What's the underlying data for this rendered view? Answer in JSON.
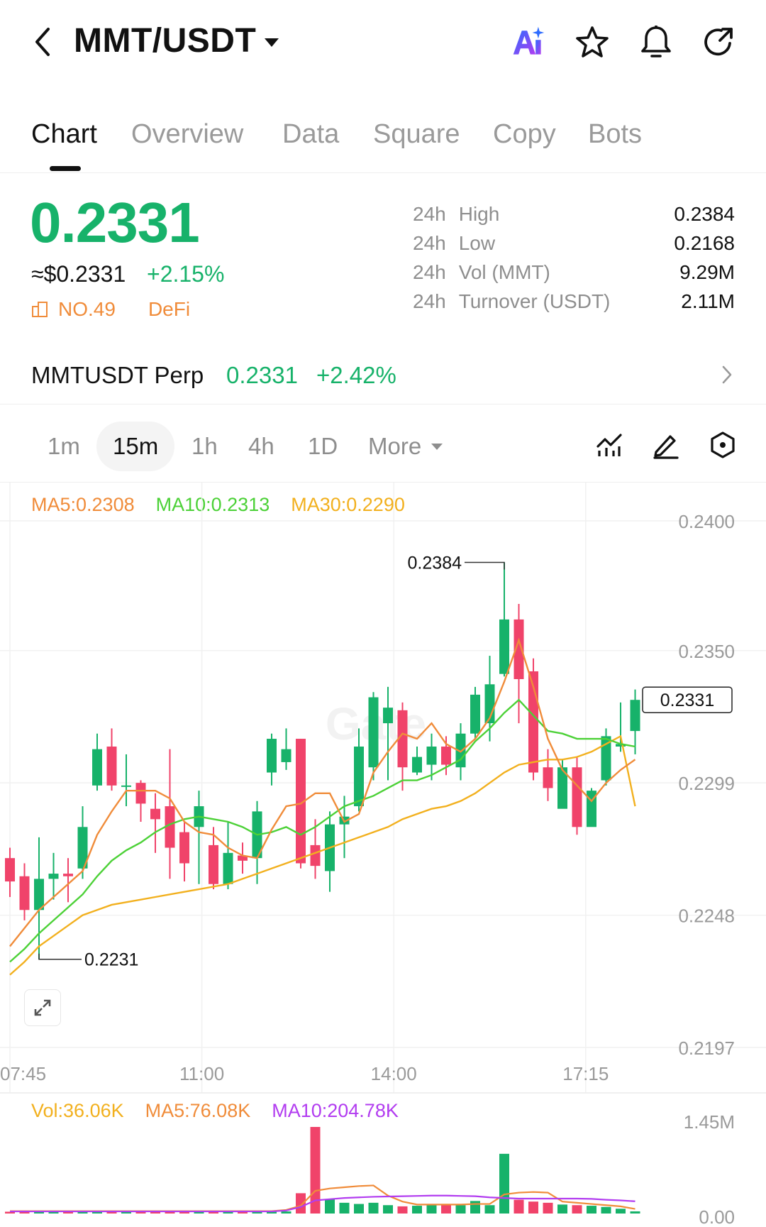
{
  "header": {
    "pair": "MMT/USDT",
    "icons": [
      "back-icon",
      "ai-icon",
      "star-icon",
      "bell-icon",
      "share-icon"
    ],
    "ai_colors": [
      "#2d6bff",
      "#b23cf0"
    ]
  },
  "tabs": [
    "Chart",
    "Overview",
    "Data",
    "Square",
    "Copy",
    "Bots"
  ],
  "price": {
    "last": "0.2331",
    "usd": "≈$0.2331",
    "change": "+2.15%",
    "rank": "NO.49",
    "tag": "DeFi",
    "colors": {
      "up": "#17b26a",
      "down": "#f0436a",
      "tag": "#f08c3a"
    }
  },
  "stats": [
    {
      "prefix": "24h",
      "label": "High",
      "value": "0.2384"
    },
    {
      "prefix": "24h",
      "label": "Low",
      "value": "0.2168"
    },
    {
      "prefix": "24h",
      "label": "Vol (MMT)",
      "value": "9.29M"
    },
    {
      "prefix": "24h",
      "label": "Turnover (USDT)",
      "value": "2.11M"
    }
  ],
  "perp": {
    "name": "MMTUSDT Perp",
    "price": "0.2331",
    "change": "+2.42%"
  },
  "timeframes": {
    "items": [
      "1m",
      "15m",
      "1h",
      "4h",
      "1D"
    ],
    "active": "15m",
    "more": "More"
  },
  "chart_tools": [
    "indicator-icon",
    "draw-icon",
    "settings-hex-icon"
  ],
  "ma_legend": [
    {
      "text": "MA5:0.2308",
      "color": "#f08c3a"
    },
    {
      "text": "MA10:0.2313",
      "color": "#4cd137"
    },
    {
      "text": "MA30:0.2290",
      "color": "#f2b01e"
    }
  ],
  "vol_legend": [
    {
      "text": "Vol:36.06K",
      "color": "#f2b01e"
    },
    {
      "text": "MA5:76.08K",
      "color": "#f08c3a"
    },
    {
      "text": "MA10:204.78K",
      "color": "#b23cf0"
    }
  ],
  "chart_data": {
    "type": "candlestick",
    "interval": "15m",
    "y_ticks": [
      "0.2400",
      "0.2350",
      "0.2299",
      "0.2248",
      "0.2197"
    ],
    "ylim": [
      0.2197,
      0.24
    ],
    "x_ticks": [
      "07:45",
      "11:00",
      "14:00",
      "17:15"
    ],
    "x_tick_index": [
      0,
      12,
      24,
      36
    ],
    "high_marker": "0.2384",
    "low_marker": "0.2231",
    "current_price_label": "0.2331",
    "watermark": "Gate",
    "candles": [
      [
        0.227,
        0.2261,
        0.2274,
        0.2255
      ],
      [
        0.2263,
        0.225,
        0.2268,
        0.2246
      ],
      [
        0.225,
        0.2262,
        0.2278,
        0.2231
      ],
      [
        0.2262,
        0.2264,
        0.2272,
        0.2254
      ],
      [
        0.2264,
        0.2263,
        0.227,
        0.2253
      ],
      [
        0.2266,
        0.2282,
        0.229,
        0.2262
      ],
      [
        0.2298,
        0.2312,
        0.2318,
        0.2296
      ],
      [
        0.2313,
        0.2298,
        0.232,
        0.2296
      ],
      [
        0.2298,
        0.2298,
        0.231,
        0.229
      ],
      [
        0.2299,
        0.2291,
        0.23,
        0.2284
      ],
      [
        0.2289,
        0.2285,
        0.2295,
        0.2272
      ],
      [
        0.229,
        0.2274,
        0.2312,
        0.2262
      ],
      [
        0.228,
        0.2268,
        0.2284,
        0.2261
      ],
      [
        0.2282,
        0.229,
        0.2296,
        0.226
      ],
      [
        0.2275,
        0.226,
        0.2282,
        0.2258
      ],
      [
        0.226,
        0.2272,
        0.2284,
        0.2258
      ],
      [
        0.2271,
        0.2269,
        0.2276,
        0.2264
      ],
      [
        0.227,
        0.2288,
        0.2292,
        0.226
      ],
      [
        0.2303,
        0.2316,
        0.2318,
        0.2298
      ],
      [
        0.2307,
        0.2312,
        0.232,
        0.2304
      ],
      [
        0.2316,
        0.2268,
        0.2316,
        0.2266
      ],
      [
        0.2275,
        0.2267,
        0.2285,
        0.2262
      ],
      [
        0.2265,
        0.2283,
        0.2288,
        0.2257
      ],
      [
        0.2283,
        0.2286,
        0.2294,
        0.227
      ],
      [
        0.229,
        0.2313,
        0.232,
        0.2288
      ],
      [
        0.2305,
        0.2332,
        0.2334,
        0.23
      ],
      [
        0.2322,
        0.2328,
        0.2336,
        0.23
      ],
      [
        0.2327,
        0.2305,
        0.233,
        0.2296
      ],
      [
        0.2303,
        0.2309,
        0.2313,
        0.2302
      ],
      [
        0.2306,
        0.2313,
        0.2318,
        0.23
      ],
      [
        0.2313,
        0.2306,
        0.2317,
        0.2302
      ],
      [
        0.2305,
        0.2318,
        0.2322,
        0.23
      ],
      [
        0.2318,
        0.2333,
        0.2336,
        0.2316
      ],
      [
        0.2322,
        0.2337,
        0.2348,
        0.2315
      ],
      [
        0.2341,
        0.2362,
        0.2384,
        0.234
      ],
      [
        0.2362,
        0.2339,
        0.2368,
        0.2322
      ],
      [
        0.2342,
        0.2303,
        0.2347,
        0.23
      ],
      [
        0.2305,
        0.2297,
        0.2312,
        0.2292
      ],
      [
        0.2289,
        0.2305,
        0.2308,
        0.2298
      ],
      [
        0.2305,
        0.2282,
        0.2309,
        0.2279
      ],
      [
        0.2282,
        0.2296,
        0.2297,
        0.2286
      ],
      [
        0.23,
        0.2317,
        0.232,
        0.2298
      ],
      [
        0.2313,
        0.2314,
        0.233,
        0.2311
      ],
      [
        0.2319,
        0.2331,
        0.2335,
        0.231
      ]
    ],
    "ma5": [
      0.2236,
      0.2243,
      0.225,
      0.2255,
      0.226,
      0.2265,
      0.2279,
      0.2288,
      0.2296,
      0.2296,
      0.2296,
      0.2293,
      0.2284,
      0.228,
      0.2279,
      0.2274,
      0.2271,
      0.227,
      0.2281,
      0.229,
      0.2291,
      0.2295,
      0.2295,
      0.2284,
      0.2287,
      0.2303,
      0.2311,
      0.2318,
      0.2316,
      0.2322,
      0.2314,
      0.2311,
      0.2316,
      0.2324,
      0.2338,
      0.2354,
      0.2336,
      0.2316,
      0.2304,
      0.2298,
      0.2292,
      0.2299,
      0.2304,
      0.2308
    ],
    "ma10": [
      0.223,
      0.2235,
      0.2241,
      0.2246,
      0.2251,
      0.2256,
      0.2263,
      0.2269,
      0.2273,
      0.2276,
      0.228,
      0.2283,
      0.2285,
      0.2286,
      0.2285,
      0.2284,
      0.2282,
      0.2279,
      0.228,
      0.2282,
      0.2279,
      0.2282,
      0.2286,
      0.229,
      0.2292,
      0.2294,
      0.2297,
      0.23,
      0.23,
      0.2302,
      0.2305,
      0.2308,
      0.2315,
      0.232,
      0.2326,
      0.2331,
      0.2325,
      0.2319,
      0.2318,
      0.2316,
      0.2316,
      0.2316,
      0.2314,
      0.2313
    ],
    "ma30": [
      0.2225,
      0.223,
      0.2236,
      0.224,
      0.2244,
      0.2248,
      0.225,
      0.2252,
      0.2253,
      0.2254,
      0.2255,
      0.2256,
      0.2257,
      0.2258,
      0.2259,
      0.226,
      0.2262,
      0.2264,
      0.2266,
      0.2268,
      0.227,
      0.2272,
      0.2274,
      0.2276,
      0.2278,
      0.228,
      0.2282,
      0.2285,
      0.2287,
      0.2289,
      0.229,
      0.2292,
      0.2295,
      0.2299,
      0.2303,
      0.2306,
      0.2307,
      0.2308,
      0.2308,
      0.2309,
      0.2311,
      0.2314,
      0.2317,
      0.229
    ],
    "volume_y_ticks": [
      "1.45M",
      "0.00"
    ],
    "volume_ylim": [
      0,
      1450000
    ],
    "volume": [
      30000,
      40000,
      30000,
      25000,
      30000,
      35000,
      40000,
      30000,
      35000,
      30000,
      30000,
      40000,
      35000,
      30000,
      35000,
      30000,
      35000,
      40000,
      30000,
      35000,
      340000,
      1450000,
      240000,
      180000,
      160000,
      180000,
      140000,
      120000,
      130000,
      140000,
      150000,
      140000,
      210000,
      140000,
      1000000,
      230000,
      200000,
      180000,
      150000,
      140000,
      130000,
      110000,
      80000,
      36060
    ],
    "vol_ma5": [
      40000,
      40000,
      40000,
      40000,
      40000,
      40000,
      40000,
      40000,
      40000,
      40000,
      40000,
      40000,
      40000,
      40000,
      40000,
      40000,
      40000,
      40000,
      40000,
      60000,
      130000,
      380000,
      420000,
      440000,
      460000,
      470000,
      300000,
      200000,
      150000,
      150000,
      150000,
      150000,
      160000,
      160000,
      320000,
      350000,
      360000,
      350000,
      200000,
      180000,
      160000,
      140000,
      120000,
      76080
    ],
    "vol_ma10": [
      35000,
      35000,
      35000,
      35000,
      35000,
      35000,
      35000,
      35000,
      35000,
      35000,
      35000,
      35000,
      35000,
      35000,
      35000,
      35000,
      35000,
      35000,
      35000,
      50000,
      110000,
      220000,
      240000,
      260000,
      270000,
      280000,
      285000,
      290000,
      295000,
      300000,
      300000,
      295000,
      290000,
      270000,
      260000,
      250000,
      250000,
      250000,
      250000,
      250000,
      245000,
      230000,
      220000,
      204780
    ]
  }
}
